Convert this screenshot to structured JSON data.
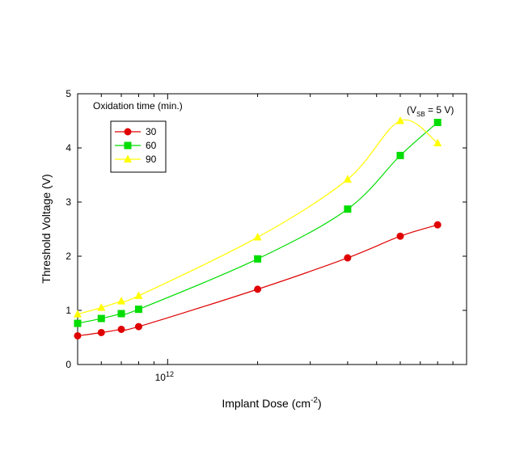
{
  "chart_data": {
    "type": "line",
    "xlabel": "Implant Dose (cm",
    "xlabel_sup": "-2",
    "xlabel_end": ")",
    "ylabel": "Threshold Voltage (V)",
    "x_scale": "log",
    "x_tick_label": {
      "value": 1000000000000.0,
      "base": "10",
      "exp": "12"
    },
    "xlim": [
      500000000000.0,
      10000000000000.0
    ],
    "ylim": [
      0,
      5
    ],
    "y_ticks": [
      0,
      1,
      2,
      3,
      4,
      5
    ],
    "grid": false,
    "legend": {
      "title": "Oxidation time (min.)",
      "placement": "top-left"
    },
    "annotation": {
      "text": "(V",
      "sub": "SB",
      "rest": " = 5 V)"
    },
    "x": [
      500000000000.0,
      600000000000.0,
      700000000000.0,
      800000000000.0,
      2000000000000.0,
      4000000000000.0,
      6000000000000.0,
      8000000000000.0
    ],
    "series": [
      {
        "name": "30",
        "color": "#e00000",
        "marker": "circle",
        "values": [
          0.53,
          0.59,
          0.65,
          0.7,
          1.39,
          1.97,
          2.37,
          2.58
        ]
      },
      {
        "name": "60",
        "color": "#00dd00",
        "marker": "square",
        "values": [
          0.76,
          0.85,
          0.94,
          1.02,
          1.95,
          2.87,
          3.86,
          4.47
        ]
      },
      {
        "name": "90",
        "color": "#ffff00",
        "marker": "triangle",
        "values": [
          0.93,
          1.05,
          1.17,
          1.27,
          2.35,
          3.42,
          4.5,
          4.09
        ]
      }
    ]
  }
}
